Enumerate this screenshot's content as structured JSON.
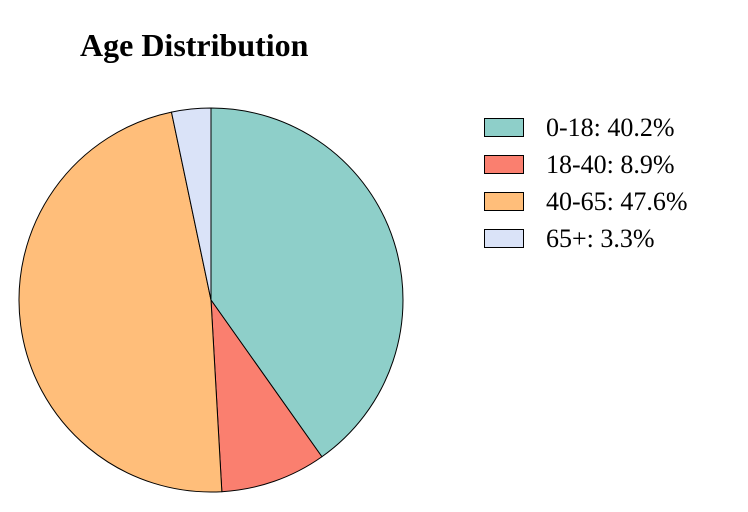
{
  "chart_data": {
    "type": "pie",
    "title": "Age Distribution",
    "slices": [
      {
        "label": "0-18",
        "value": 40.2,
        "legend_text": "0-18: 40.2%",
        "color": "#8ecfc9"
      },
      {
        "label": "18-40",
        "value": 8.9,
        "legend_text": "18-40: 8.9%",
        "color": "#fa7f6f"
      },
      {
        "label": "40-65",
        "value": 47.6,
        "legend_text": "40-65: 47.6%",
        "color": "#ffbe7a"
      },
      {
        "label": "65+",
        "value": 3.3,
        "legend_text": "65+: 3.3%",
        "color": "#dae3f8"
      }
    ],
    "start_angle": "top",
    "direction": "clockwise",
    "legend_position": "right"
  }
}
